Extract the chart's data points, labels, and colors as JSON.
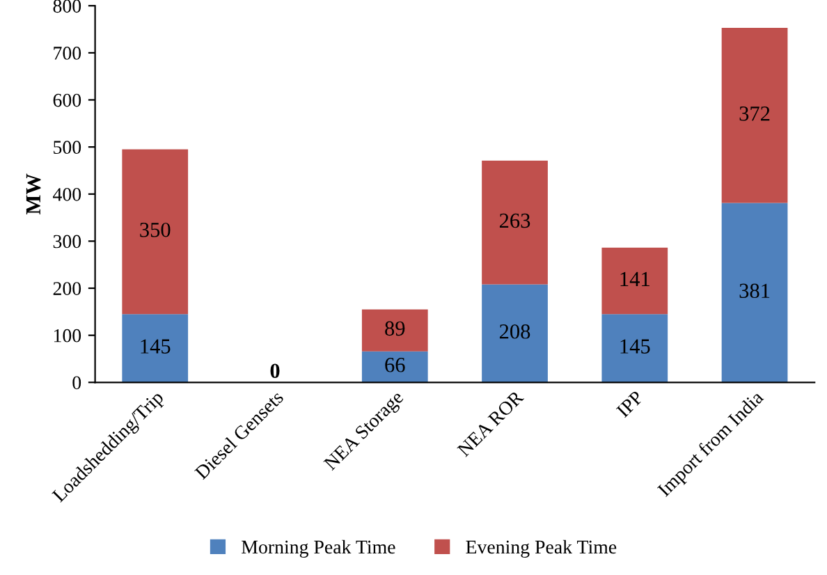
{
  "chart_data": {
    "type": "bar",
    "stacked": true,
    "ylabel": "MW",
    "categories": [
      "Loadshedding/Trip",
      "Diesel Gensets",
      "NEA Storage",
      "NEA ROR",
      "IPP",
      "Import from India"
    ],
    "series": [
      {
        "name": "Morning Peak Time",
        "color": "#4f81bd",
        "values": [
          145,
          0,
          66,
          208,
          145,
          381
        ]
      },
      {
        "name": "Evening Peak Time",
        "color": "#c0504d",
        "values": [
          350,
          0,
          89,
          263,
          141,
          372
        ],
        "value_labels": [
          "350",
          null,
          "89",
          "263",
          "141",
          "372"
        ]
      }
    ],
    "ylim": [
      0,
      800
    ],
    "yticks": [
      0,
      100,
      200,
      300,
      400,
      500,
      600,
      700,
      800
    ],
    "data_labels": true,
    "grid": false,
    "legend": "bottom"
  }
}
